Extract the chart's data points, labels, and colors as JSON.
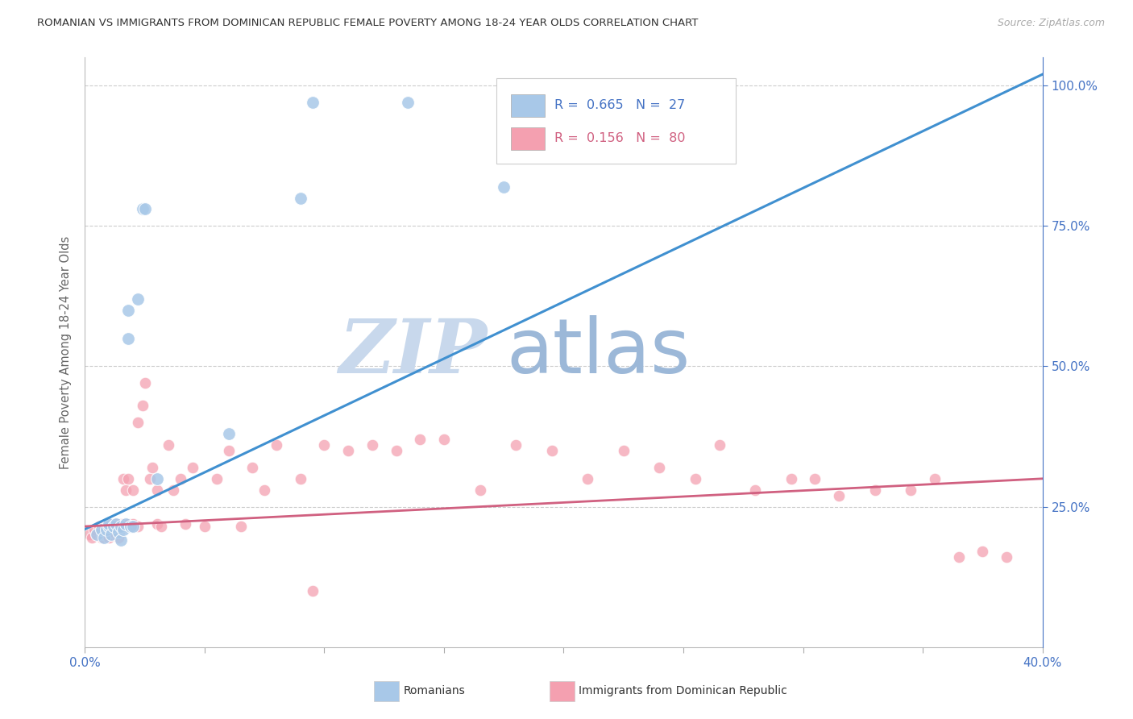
{
  "title": "ROMANIAN VS IMMIGRANTS FROM DOMINICAN REPUBLIC FEMALE POVERTY AMONG 18-24 YEAR OLDS CORRELATION CHART",
  "source": "Source: ZipAtlas.com",
  "ylabel": "Female Poverty Among 18-24 Year Olds",
  "xlim": [
    0.0,
    0.4
  ],
  "ylim": [
    0.0,
    1.05
  ],
  "xtick_positions": [
    0.0,
    0.05,
    0.1,
    0.15,
    0.2,
    0.25,
    0.3,
    0.35,
    0.4
  ],
  "xtick_labels": [
    "0.0%",
    "",
    "",
    "",
    "",
    "",
    "",
    "",
    "40.0%"
  ],
  "ytick_positions": [
    0.25,
    0.5,
    0.75,
    1.0
  ],
  "ytick_labels": [
    "25.0%",
    "50.0%",
    "75.0%",
    "100.0%"
  ],
  "legend_romanian_r": "0.665",
  "legend_romanian_n": "27",
  "legend_dr_r": "0.156",
  "legend_dr_n": "80",
  "romanian_color": "#a8c8e8",
  "dr_color": "#f4a0b0",
  "trend_romanian_color": "#4090d0",
  "trend_dr_color": "#d06080",
  "watermark_zip": "ZIP",
  "watermark_atlas": "atlas",
  "watermark_color_zip": "#c8d8ec",
  "watermark_color_atlas": "#9cb8d8",
  "blue_scatter_x": [
    0.005,
    0.007,
    0.008,
    0.009,
    0.01,
    0.01,
    0.011,
    0.012,
    0.013,
    0.014,
    0.015,
    0.015,
    0.016,
    0.017,
    0.018,
    0.018,
    0.019,
    0.02,
    0.022,
    0.024,
    0.025,
    0.03,
    0.06,
    0.09,
    0.095,
    0.135,
    0.175
  ],
  "blue_scatter_y": [
    0.2,
    0.21,
    0.195,
    0.21,
    0.215,
    0.22,
    0.2,
    0.215,
    0.22,
    0.205,
    0.215,
    0.19,
    0.21,
    0.22,
    0.55,
    0.6,
    0.215,
    0.215,
    0.62,
    0.78,
    0.78,
    0.3,
    0.38,
    0.8,
    0.97,
    0.97,
    0.82
  ],
  "pink_scatter_x": [
    0.002,
    0.003,
    0.004,
    0.005,
    0.006,
    0.007,
    0.007,
    0.008,
    0.008,
    0.009,
    0.009,
    0.01,
    0.01,
    0.01,
    0.011,
    0.011,
    0.012,
    0.012,
    0.013,
    0.013,
    0.014,
    0.014,
    0.015,
    0.015,
    0.016,
    0.016,
    0.017,
    0.017,
    0.018,
    0.018,
    0.019,
    0.02,
    0.02,
    0.022,
    0.022,
    0.024,
    0.025,
    0.027,
    0.028,
    0.03,
    0.03,
    0.032,
    0.035,
    0.037,
    0.04,
    0.042,
    0.045,
    0.05,
    0.055,
    0.06,
    0.065,
    0.07,
    0.075,
    0.08,
    0.09,
    0.095,
    0.1,
    0.11,
    0.12,
    0.13,
    0.14,
    0.15,
    0.165,
    0.18,
    0.195,
    0.21,
    0.225,
    0.24,
    0.255,
    0.265,
    0.28,
    0.295,
    0.305,
    0.315,
    0.33,
    0.345,
    0.355,
    0.365,
    0.375,
    0.385
  ],
  "pink_scatter_y": [
    0.2,
    0.195,
    0.21,
    0.2,
    0.215,
    0.195,
    0.205,
    0.21,
    0.2,
    0.215,
    0.2,
    0.2,
    0.215,
    0.195,
    0.22,
    0.2,
    0.21,
    0.215,
    0.2,
    0.22,
    0.215,
    0.195,
    0.22,
    0.215,
    0.3,
    0.22,
    0.215,
    0.28,
    0.22,
    0.3,
    0.215,
    0.22,
    0.28,
    0.4,
    0.215,
    0.43,
    0.47,
    0.3,
    0.32,
    0.22,
    0.28,
    0.215,
    0.36,
    0.28,
    0.3,
    0.22,
    0.32,
    0.215,
    0.3,
    0.35,
    0.215,
    0.32,
    0.28,
    0.36,
    0.3,
    0.1,
    0.36,
    0.35,
    0.36,
    0.35,
    0.37,
    0.37,
    0.28,
    0.36,
    0.35,
    0.3,
    0.35,
    0.32,
    0.3,
    0.36,
    0.28,
    0.3,
    0.3,
    0.27,
    0.28,
    0.28,
    0.3,
    0.16,
    0.17,
    0.16
  ],
  "blue_trend_x0": 0.0,
  "blue_trend_y0": 0.21,
  "blue_trend_x1": 0.4,
  "blue_trend_y1": 1.02,
  "pink_trend_x0": 0.0,
  "pink_trend_y0": 0.215,
  "pink_trend_x1": 0.4,
  "pink_trend_y1": 0.3
}
